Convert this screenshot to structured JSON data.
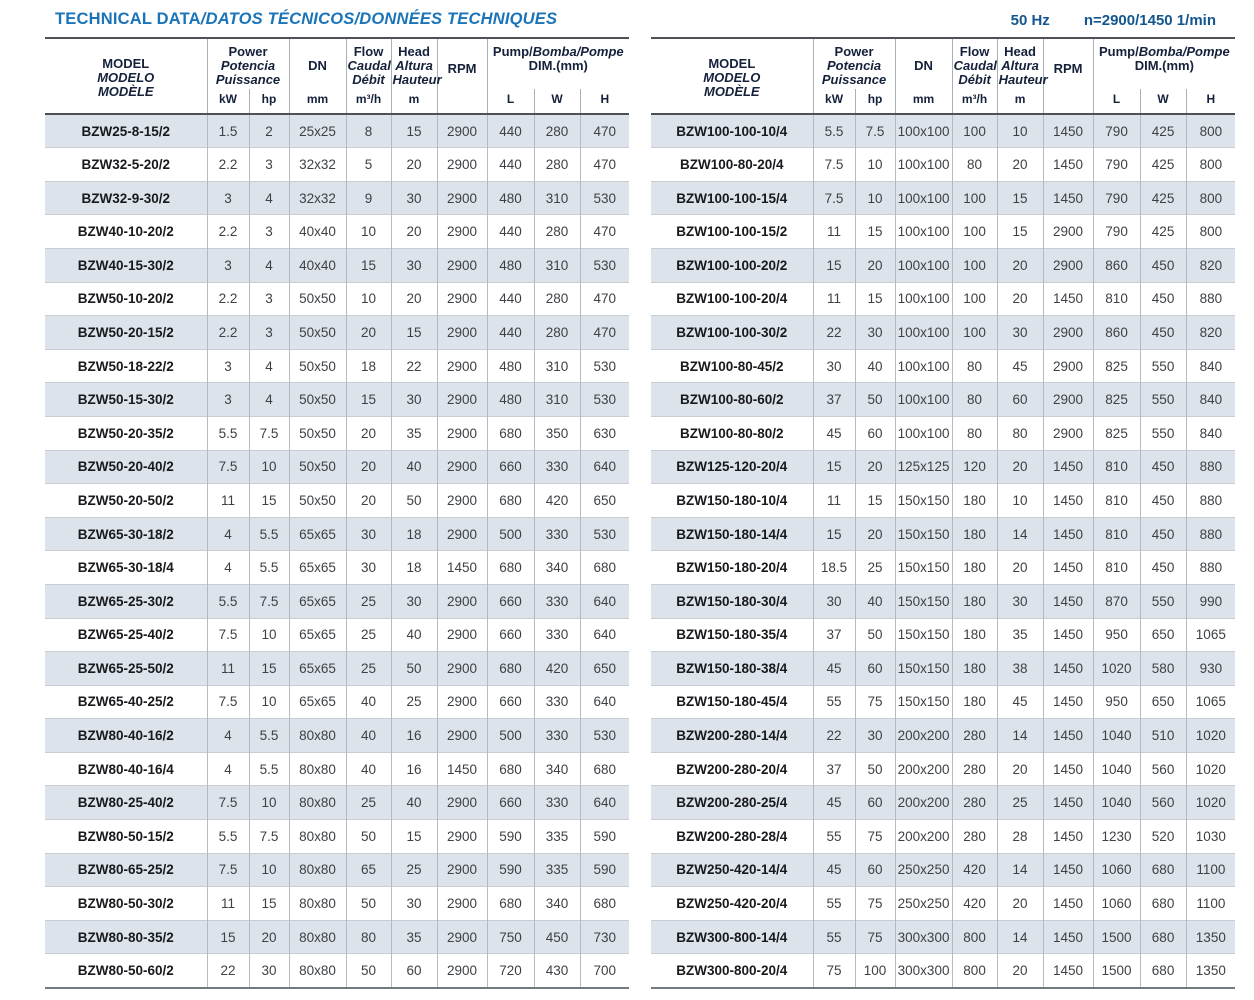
{
  "header_bar": {
    "title_en": "TECHNICAL DATA",
    "title_rest": "/DATOS TÉCNICOS/DONNÉES TECHNIQUES",
    "frequency": "50 Hz",
    "speed": "n=2900/1450 1/min"
  },
  "colors": {
    "title_blue": "#1b74b8",
    "specs_blue": "#14568f",
    "stripe": "#dde3ea",
    "heavy_border": "#4d5156",
    "header_text": "#15213a"
  },
  "columns": {
    "model": [
      "MODEL",
      "MODELO",
      "MODÈLE"
    ],
    "power": [
      "Power",
      "Potencia",
      "Puissance"
    ],
    "dn": "DN",
    "flow": [
      "Flow",
      "Caudal",
      "Débit"
    ],
    "head": [
      "Head",
      "Altura",
      "Hauteur"
    ],
    "rpm": "RPM",
    "dim_en": "Pump/",
    "dim_rest": "Bomba/Pompe",
    "dim_sub": "DIM.(mm)",
    "units": {
      "kw": "kW",
      "hp": "hp",
      "dn": "mm",
      "flow": "m³/h",
      "head": "m",
      "l": "L",
      "w": "W",
      "h": "H"
    }
  },
  "tables": {
    "left": {
      "rows": [
        [
          "BZW25-8-15/2",
          "1.5",
          "2",
          "25x25",
          "8",
          "15",
          "2900",
          "440",
          "280",
          "470"
        ],
        [
          "BZW32-5-20/2",
          "2.2",
          "3",
          "32x32",
          "5",
          "20",
          "2900",
          "440",
          "280",
          "470"
        ],
        [
          "BZW32-9-30/2",
          "3",
          "4",
          "32x32",
          "9",
          "30",
          "2900",
          "480",
          "310",
          "530"
        ],
        [
          "BZW40-10-20/2",
          "2.2",
          "3",
          "40x40",
          "10",
          "20",
          "2900",
          "440",
          "280",
          "470"
        ],
        [
          "BZW40-15-30/2",
          "3",
          "4",
          "40x40",
          "15",
          "30",
          "2900",
          "480",
          "310",
          "530"
        ],
        [
          "BZW50-10-20/2",
          "2.2",
          "3",
          "50x50",
          "10",
          "20",
          "2900",
          "440",
          "280",
          "470"
        ],
        [
          "BZW50-20-15/2",
          "2.2",
          "3",
          "50x50",
          "20",
          "15",
          "2900",
          "440",
          "280",
          "470"
        ],
        [
          "BZW50-18-22/2",
          "3",
          "4",
          "50x50",
          "18",
          "22",
          "2900",
          "480",
          "310",
          "530"
        ],
        [
          "BZW50-15-30/2",
          "3",
          "4",
          "50x50",
          "15",
          "30",
          "2900",
          "480",
          "310",
          "530"
        ],
        [
          "BZW50-20-35/2",
          "5.5",
          "7.5",
          "50x50",
          "20",
          "35",
          "2900",
          "680",
          "350",
          "630"
        ],
        [
          "BZW50-20-40/2",
          "7.5",
          "10",
          "50x50",
          "20",
          "40",
          "2900",
          "660",
          "330",
          "640"
        ],
        [
          "BZW50-20-50/2",
          "11",
          "15",
          "50x50",
          "20",
          "50",
          "2900",
          "680",
          "420",
          "650"
        ],
        [
          "BZW65-30-18/2",
          "4",
          "5.5",
          "65x65",
          "30",
          "18",
          "2900",
          "500",
          "330",
          "530"
        ],
        [
          "BZW65-30-18/4",
          "4",
          "5.5",
          "65x65",
          "30",
          "18",
          "1450",
          "680",
          "340",
          "680"
        ],
        [
          "BZW65-25-30/2",
          "5.5",
          "7.5",
          "65x65",
          "25",
          "30",
          "2900",
          "660",
          "330",
          "640"
        ],
        [
          "BZW65-25-40/2",
          "7.5",
          "10",
          "65x65",
          "25",
          "40",
          "2900",
          "660",
          "330",
          "640"
        ],
        [
          "BZW65-25-50/2",
          "11",
          "15",
          "65x65",
          "25",
          "50",
          "2900",
          "680",
          "420",
          "650"
        ],
        [
          "BZW65-40-25/2",
          "7.5",
          "10",
          "65x65",
          "40",
          "25",
          "2900",
          "660",
          "330",
          "640"
        ],
        [
          "BZW80-40-16/2",
          "4",
          "5.5",
          "80x80",
          "40",
          "16",
          "2900",
          "500",
          "330",
          "530"
        ],
        [
          "BZW80-40-16/4",
          "4",
          "5.5",
          "80x80",
          "40",
          "16",
          "1450",
          "680",
          "340",
          "680"
        ],
        [
          "BZW80-25-40/2",
          "7.5",
          "10",
          "80x80",
          "25",
          "40",
          "2900",
          "660",
          "330",
          "640"
        ],
        [
          "BZW80-50-15/2",
          "5.5",
          "7.5",
          "80x80",
          "50",
          "15",
          "2900",
          "590",
          "335",
          "590"
        ],
        [
          "BZW80-65-25/2",
          "7.5",
          "10",
          "80x80",
          "65",
          "25",
          "2900",
          "590",
          "335",
          "590"
        ],
        [
          "BZW80-50-30/2",
          "11",
          "15",
          "80x80",
          "50",
          "30",
          "2900",
          "680",
          "340",
          "680"
        ],
        [
          "BZW80-80-35/2",
          "15",
          "20",
          "80x80",
          "80",
          "35",
          "2900",
          "750",
          "450",
          "730"
        ],
        [
          "BZW80-50-60/2",
          "22",
          "30",
          "80x80",
          "50",
          "60",
          "2900",
          "720",
          "430",
          "700"
        ]
      ]
    },
    "right": {
      "rows": [
        [
          "BZW100-100-10/4",
          "5.5",
          "7.5",
          "100x100",
          "100",
          "10",
          "1450",
          "790",
          "425",
          "800"
        ],
        [
          "BZW100-80-20/4",
          "7.5",
          "10",
          "100x100",
          "80",
          "20",
          "1450",
          "790",
          "425",
          "800"
        ],
        [
          "BZW100-100-15/4",
          "7.5",
          "10",
          "100x100",
          "100",
          "15",
          "1450",
          "790",
          "425",
          "800"
        ],
        [
          "BZW100-100-15/2",
          "11",
          "15",
          "100x100",
          "100",
          "15",
          "2900",
          "790",
          "425",
          "800"
        ],
        [
          "BZW100-100-20/2",
          "15",
          "20",
          "100x100",
          "100",
          "20",
          "2900",
          "860",
          "450",
          "820"
        ],
        [
          "BZW100-100-20/4",
          "11",
          "15",
          "100x100",
          "100",
          "20",
          "1450",
          "810",
          "450",
          "880"
        ],
        [
          "BZW100-100-30/2",
          "22",
          "30",
          "100x100",
          "100",
          "30",
          "2900",
          "860",
          "450",
          "820"
        ],
        [
          "BZW100-80-45/2",
          "30",
          "40",
          "100x100",
          "80",
          "45",
          "2900",
          "825",
          "550",
          "840"
        ],
        [
          "BZW100-80-60/2",
          "37",
          "50",
          "100x100",
          "80",
          "60",
          "2900",
          "825",
          "550",
          "840"
        ],
        [
          "BZW100-80-80/2",
          "45",
          "60",
          "100x100",
          "80",
          "80",
          "2900",
          "825",
          "550",
          "840"
        ],
        [
          "BZW125-120-20/4",
          "15",
          "20",
          "125x125",
          "120",
          "20",
          "1450",
          "810",
          "450",
          "880"
        ],
        [
          "BZW150-180-10/4",
          "11",
          "15",
          "150x150",
          "180",
          "10",
          "1450",
          "810",
          "450",
          "880"
        ],
        [
          "BZW150-180-14/4",
          "15",
          "20",
          "150x150",
          "180",
          "14",
          "1450",
          "810",
          "450",
          "880"
        ],
        [
          "BZW150-180-20/4",
          "18.5",
          "25",
          "150x150",
          "180",
          "20",
          "1450",
          "810",
          "450",
          "880"
        ],
        [
          "BZW150-180-30/4",
          "30",
          "40",
          "150x150",
          "180",
          "30",
          "1450",
          "870",
          "550",
          "990"
        ],
        [
          "BZW150-180-35/4",
          "37",
          "50",
          "150x150",
          "180",
          "35",
          "1450",
          "950",
          "650",
          "1065"
        ],
        [
          "BZW150-180-38/4",
          "45",
          "60",
          "150x150",
          "180",
          "38",
          "1450",
          "1020",
          "580",
          "930"
        ],
        [
          "BZW150-180-45/4",
          "55",
          "75",
          "150x150",
          "180",
          "45",
          "1450",
          "950",
          "650",
          "1065"
        ],
        [
          "BZW200-280-14/4",
          "22",
          "30",
          "200x200",
          "280",
          "14",
          "1450",
          "1040",
          "510",
          "1020"
        ],
        [
          "BZW200-280-20/4",
          "37",
          "50",
          "200x200",
          "280",
          "20",
          "1450",
          "1040",
          "560",
          "1020"
        ],
        [
          "BZW200-280-25/4",
          "45",
          "60",
          "200x200",
          "280",
          "25",
          "1450",
          "1040",
          "560",
          "1020"
        ],
        [
          "BZW200-280-28/4",
          "55",
          "75",
          "200x200",
          "280",
          "28",
          "1450",
          "1230",
          "520",
          "1030"
        ],
        [
          "BZW250-420-14/4",
          "45",
          "60",
          "250x250",
          "420",
          "14",
          "1450",
          "1060",
          "680",
          "1100"
        ],
        [
          "BZW250-420-20/4",
          "55",
          "75",
          "250x250",
          "420",
          "20",
          "1450",
          "1060",
          "680",
          "1100"
        ],
        [
          "BZW300-800-14/4",
          "55",
          "75",
          "300x300",
          "800",
          "14",
          "1450",
          "1500",
          "680",
          "1350"
        ],
        [
          "BZW300-800-20/4",
          "75",
          "100",
          "300x300",
          "800",
          "20",
          "1450",
          "1500",
          "680",
          "1350"
        ]
      ]
    }
  }
}
